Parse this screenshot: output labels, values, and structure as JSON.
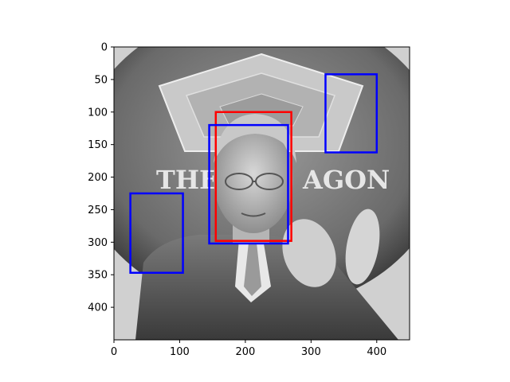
{
  "chart_data": {
    "type": "image_with_boxes",
    "title": "",
    "xlabel": "",
    "ylabel": "",
    "image": {
      "width": 450,
      "height": 450,
      "description_tags": [
        "grayscale-photo",
        "man-in-suit",
        "seal-background"
      ]
    },
    "xlim": [
      0,
      450
    ],
    "ylim": [
      450,
      0
    ],
    "y_inverted": true,
    "xticks": [
      0,
      100,
      200,
      300,
      400
    ],
    "yticks": [
      0,
      50,
      100,
      150,
      200,
      250,
      300,
      350,
      400
    ],
    "grid": false,
    "legend": "none",
    "colors": {
      "red_box": "#ff0000",
      "blue_box": "#0000ff"
    },
    "boxes": [
      {
        "label": "red",
        "x0": 155,
        "y0": 100,
        "x1": 270,
        "y1": 298
      },
      {
        "label": "blue",
        "x0": 145,
        "y0": 120,
        "x1": 265,
        "y1": 302
      },
      {
        "label": "blue",
        "x0": 322,
        "y0": 42,
        "x1": 400,
        "y1": 162
      },
      {
        "label": "blue",
        "x0": 25,
        "y0": 225,
        "x1": 105,
        "y1": 347
      }
    ]
  }
}
